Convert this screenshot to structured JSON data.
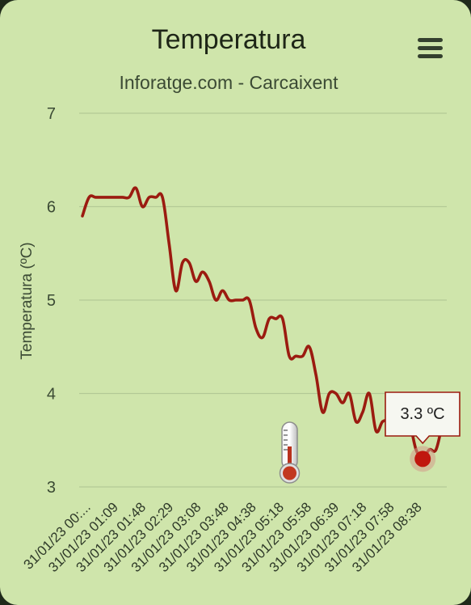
{
  "chart_data": {
    "type": "line",
    "title": "Temperatura",
    "subtitle": "Inforatge.com - Carcaixent",
    "ylabel": "Temperatura (ºC)",
    "ylim": [
      3,
      7
    ],
    "yticks": [
      3,
      4,
      5,
      6,
      7
    ],
    "grid": true,
    "line_color": "#9b1b10",
    "x_tick_labels": [
      "31/01/23 00:...",
      "31/01/23 01:09",
      "31/01/23 01:48",
      "31/01/23 02:29",
      "31/01/23 03:08",
      "31/01/23 03:48",
      "31/01/23 04:38",
      "31/01/23 05:18",
      "31/01/23 05:58",
      "31/01/23 06:39",
      "31/01/23 07:18",
      "31/01/23 07:58",
      "31/01/23 08:38"
    ],
    "series": [
      {
        "values": [
          5.9,
          6.1,
          6.1,
          6.1,
          6.1,
          6.1,
          6.1,
          6.1,
          6.2,
          6.0,
          6.1,
          6.1,
          6.1,
          5.6,
          5.1,
          5.4,
          5.4,
          5.2,
          5.3,
          5.2,
          5.0,
          5.1,
          5.0,
          5.0,
          5.0,
          5.0,
          4.7,
          4.6,
          4.8,
          4.8,
          4.8,
          4.4,
          4.4,
          4.4,
          4.5,
          4.2,
          3.8,
          4.0,
          4.0,
          3.9,
          4.0,
          3.7,
          3.8,
          4.0,
          3.6,
          3.7,
          3.7,
          3.6,
          3.8,
          3.7,
          3.4,
          3.3,
          3.4,
          3.4,
          3.7
        ]
      }
    ],
    "tooltip": {
      "label": "3.3 ºC",
      "value": 3.3
    }
  }
}
